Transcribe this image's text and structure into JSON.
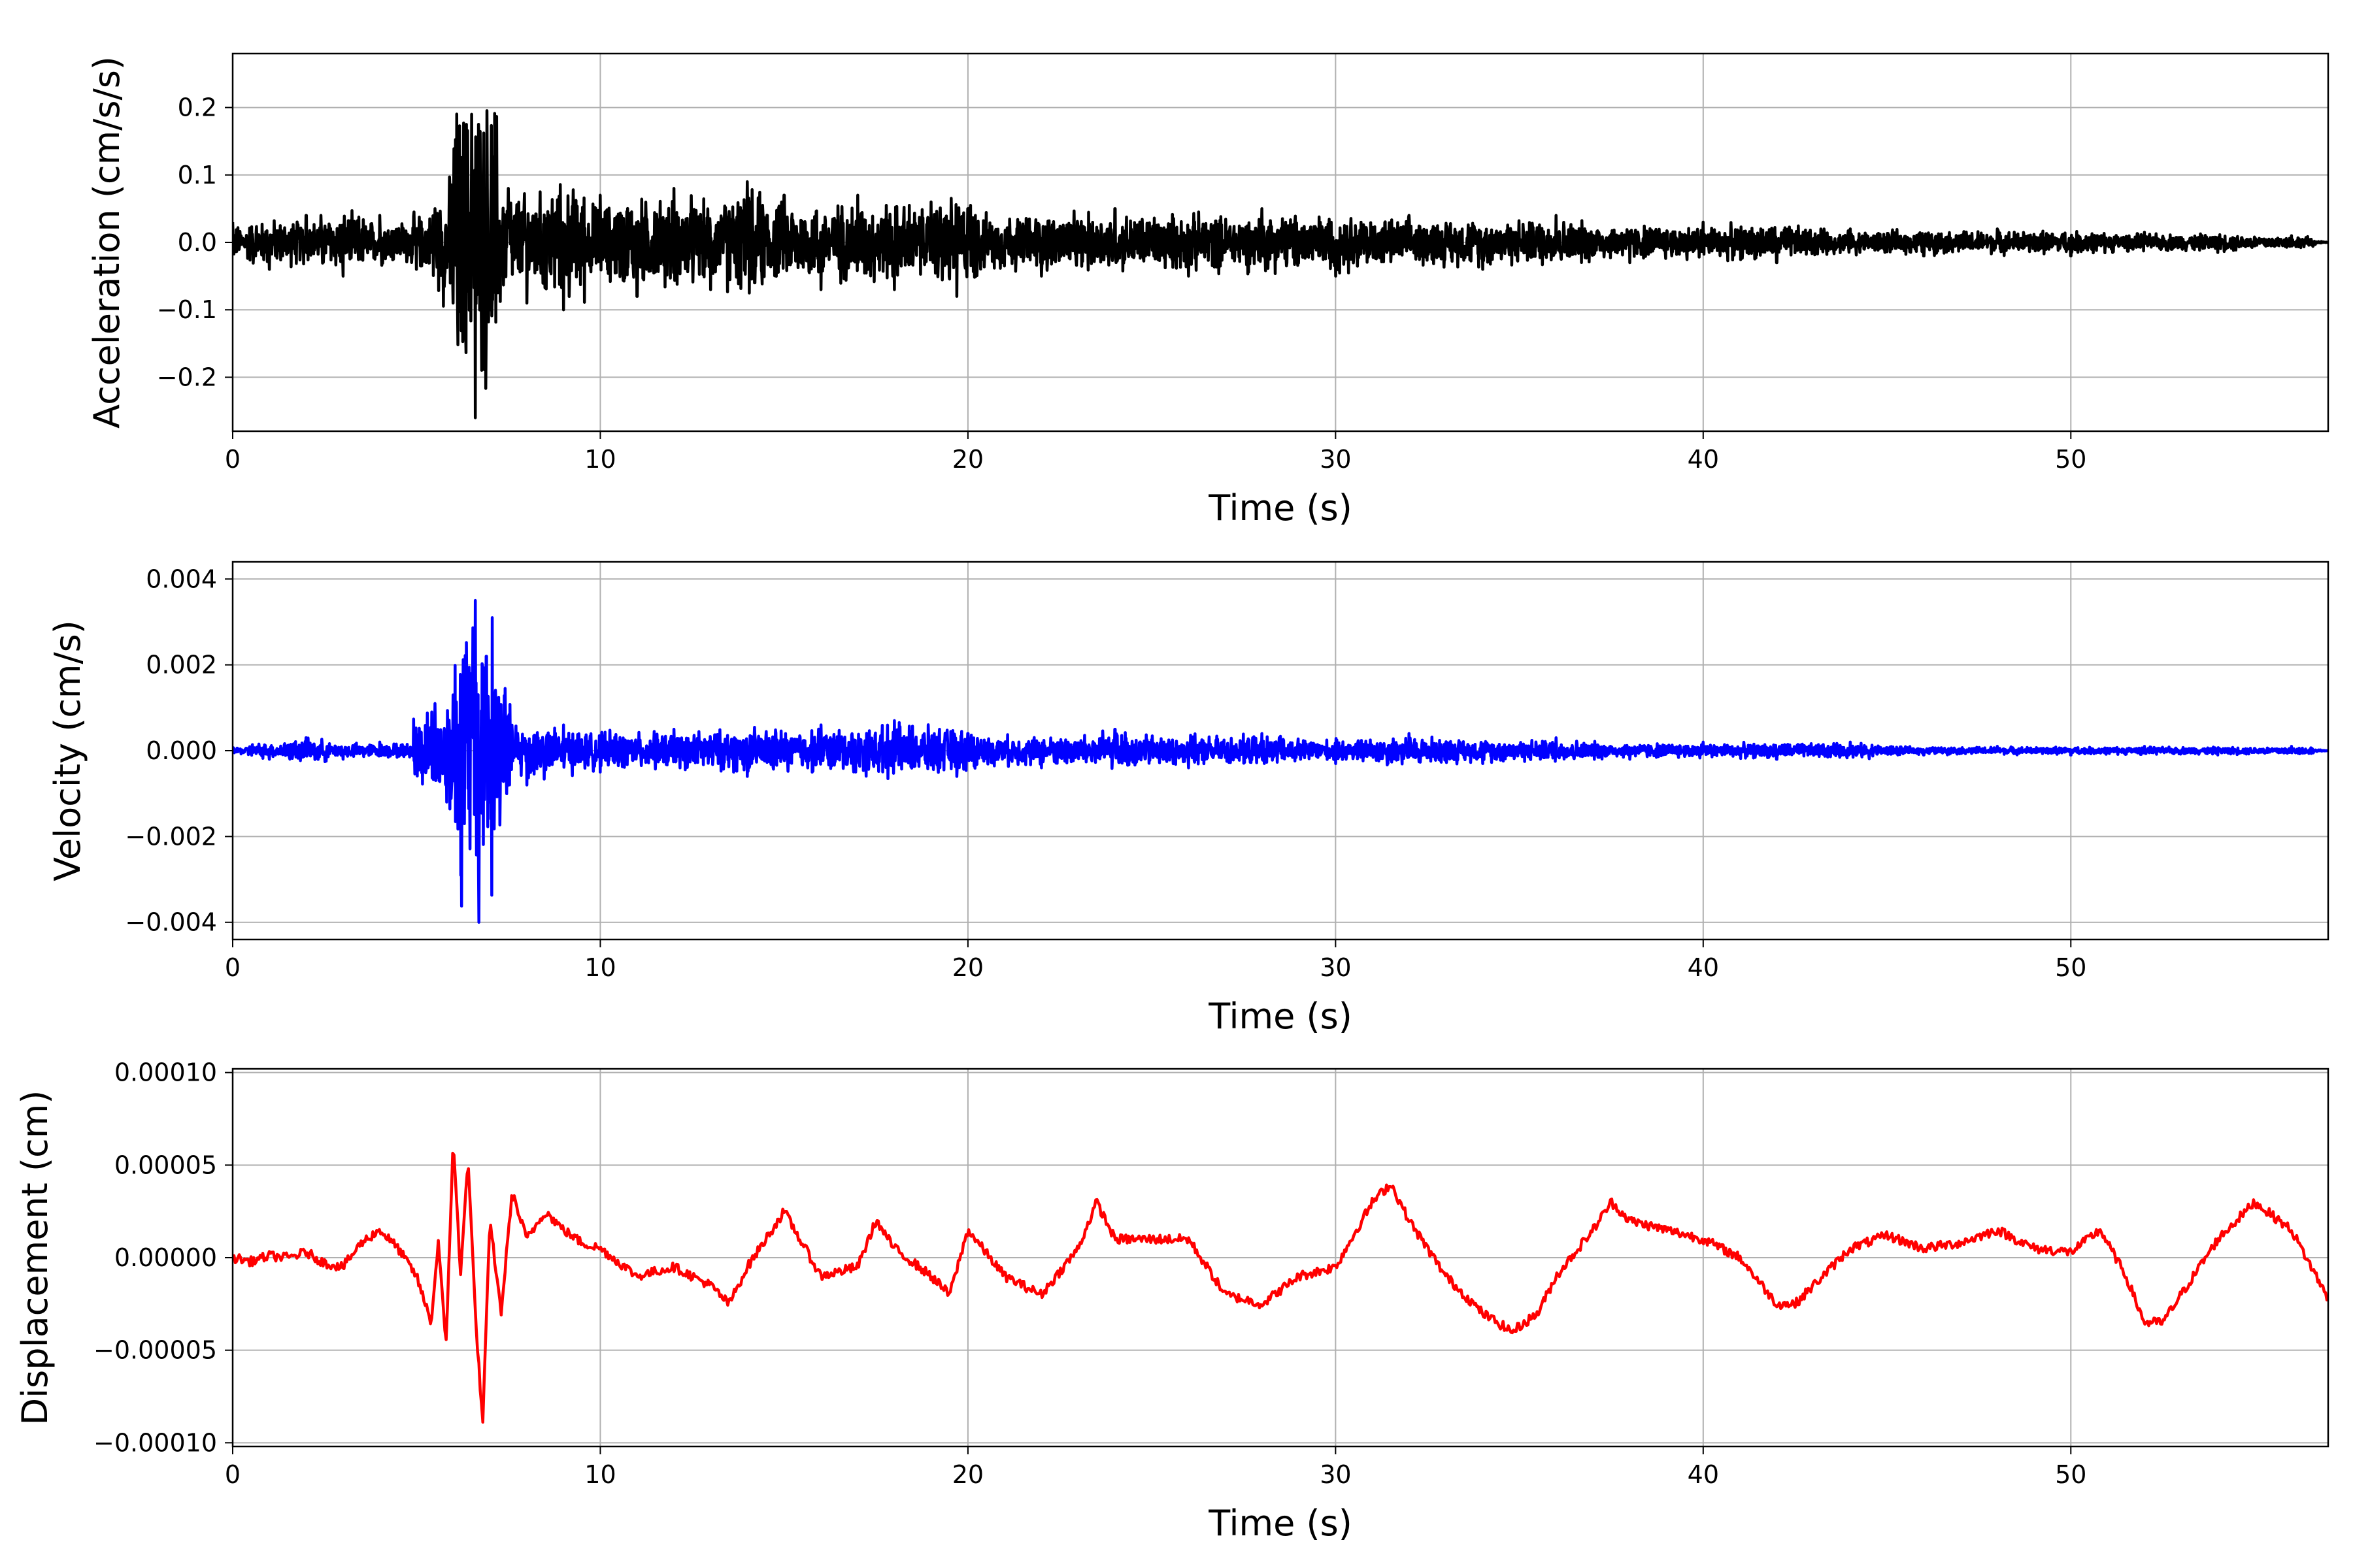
{
  "chart_data": [
    {
      "type": "line",
      "xlabel": "Time (s)",
      "ylabel": "Acceleration (cm/s/s)",
      "xlim": [
        0,
        57
      ],
      "ylim": [
        -0.28,
        0.28
      ],
      "xticks": [
        0,
        10,
        20,
        30,
        40,
        50
      ],
      "xtick_labels": [
        "0",
        "10",
        "20",
        "30",
        "40",
        "50"
      ],
      "yticks": [
        -0.2,
        -0.1,
        0.0,
        0.1,
        0.2
      ],
      "ytick_labels": [
        "−0.2",
        "−0.1",
        "0.0",
        "0.1",
        "0.2"
      ],
      "grid": true,
      "color": "#000000",
      "series": [
        {
          "x": [
            0,
            1,
            2,
            3,
            4,
            5,
            5.5,
            6.0,
            6.3,
            6.5,
            6.6,
            6.7,
            7.0,
            7.5,
            8,
            9,
            10,
            11,
            12,
            13,
            14,
            14.2,
            15,
            16,
            17,
            18,
            19,
            19.7,
            20,
            22,
            24,
            26,
            28,
            30,
            32,
            34,
            36,
            38,
            40,
            42,
            44,
            46,
            48,
            50,
            52,
            54,
            56,
            57
          ],
          "y": [
            0.03,
            -0.04,
            0.04,
            -0.05,
            0.04,
            -0.04,
            0.05,
            -0.09,
            0.11,
            0.19,
            -0.26,
            0.16,
            -0.1,
            0.08,
            -0.09,
            -0.1,
            0.07,
            -0.08,
            0.08,
            -0.07,
            0.09,
            -0.06,
            0.07,
            -0.07,
            0.07,
            -0.07,
            0.06,
            -0.08,
            0.05,
            -0.05,
            0.05,
            -0.05,
            0.05,
            -0.05,
            0.04,
            -0.04,
            0.04,
            -0.03,
            0.03,
            -0.03,
            0.02,
            -0.02,
            0.02,
            -0.02,
            0.015,
            -0.015,
            0.01,
            0.0
          ]
        }
      ]
    },
    {
      "type": "line",
      "xlabel": "Time (s)",
      "ylabel": "Velocity (cm/s)",
      "xlim": [
        0,
        57
      ],
      "ylim": [
        -0.0044,
        0.0044
      ],
      "xticks": [
        0,
        10,
        20,
        30,
        40,
        50
      ],
      "xtick_labels": [
        "0",
        "10",
        "20",
        "30",
        "40",
        "50"
      ],
      "yticks": [
        -0.004,
        -0.002,
        0.0,
        0.002,
        0.004
      ],
      "ytick_labels": [
        "−0.004",
        "−0.002",
        "0.000",
        "0.002",
        "0.004"
      ],
      "grid": true,
      "color": "#0000ff",
      "series": [
        {
          "x": [
            0,
            1,
            2,
            3,
            4,
            5,
            5.5,
            5.8,
            6.0,
            6.3,
            6.5,
            6.6,
            6.7,
            6.9,
            7.0,
            7.5,
            8,
            9,
            10,
            12,
            14,
            16,
            18,
            19.7,
            20,
            22,
            24,
            26,
            28,
            30,
            32,
            34,
            36,
            38,
            40,
            42,
            44,
            46,
            48,
            50,
            52,
            54,
            56,
            57
          ],
          "y": [
            0.0001,
            -0.0002,
            0.0003,
            -0.0002,
            0.0002,
            -0.0002,
            0.0011,
            -0.0008,
            0.0013,
            -0.0017,
            0.0018,
            0.0035,
            -0.004,
            0.0022,
            -0.0012,
            0.0008,
            -0.0008,
            0.0006,
            -0.0005,
            0.0005,
            -0.0006,
            0.0006,
            0.0007,
            -0.0006,
            0.0004,
            -0.0004,
            0.0005,
            -0.0004,
            0.0004,
            -0.0003,
            0.0004,
            -0.0003,
            0.0003,
            -0.0002,
            0.0002,
            -0.0002,
            0.0002,
            -0.0001,
            0.0001,
            -0.0001,
            0.0001,
            -0.0001,
            0.0001,
            0.0
          ]
        }
      ]
    },
    {
      "type": "line",
      "xlabel": "Time (s)",
      "ylabel": "Displacement (cm)",
      "xlim": [
        0,
        57
      ],
      "ylim": [
        -0.000102,
        0.000102
      ],
      "xticks": [
        0,
        10,
        20,
        30,
        40,
        50
      ],
      "xtick_labels": [
        "0",
        "10",
        "20",
        "30",
        "40",
        "50"
      ],
      "yticks": [
        -0.0001,
        -5e-05,
        0.0,
        5e-05,
        0.0001
      ],
      "ytick_labels": [
        "−0.00010",
        "−0.00005",
        "0.00000",
        "0.00005",
        "0.00010"
      ],
      "grid": true,
      "color": "#ff0000",
      "series": [
        {
          "x": [
            0,
            0.5,
            1,
            1.5,
            2,
            2.5,
            3,
            3.5,
            4,
            4.5,
            5,
            5.4,
            5.6,
            5.8,
            6.0,
            6.2,
            6.4,
            6.6,
            6.8,
            7.0,
            7.3,
            7.6,
            8.0,
            8.5,
            9,
            9.5,
            10,
            11,
            12,
            13,
            13.5,
            14,
            15,
            16,
            17,
            17.5,
            18,
            19,
            19.5,
            20,
            21,
            22,
            23,
            23.5,
            24,
            25,
            26,
            27,
            28,
            29,
            30,
            31,
            31.5,
            32,
            33,
            34,
            34.8,
            35.5,
            36,
            37,
            37.5,
            38,
            39,
            40,
            41,
            42,
            42.5,
            43,
            44,
            45,
            46,
            47,
            48,
            49,
            50,
            50.8,
            51.5,
            52,
            52.5,
            53,
            54,
            55,
            56,
            57
          ],
          "y": [
            0.0,
            -2e-06,
            1e-06,
            0.0,
            3e-06,
            -3e-06,
            -5e-06,
            8e-06,
            1.5e-05,
            5e-06,
            -1e-05,
            -3.5e-05,
            1e-05,
            -5e-05,
            6.5e-05,
            -1e-05,
            5.5e-05,
            -3e-05,
            -9e-05,
            2e-05,
            -3e-05,
            3.5e-05,
            1e-05,
            2.5e-05,
            1.5e-05,
            8e-06,
            5e-06,
            -1e-05,
            -5e-06,
            -1.5e-05,
            -2.5e-05,
            -5e-06,
            2.5e-05,
            -1e-05,
            -5e-06,
            2e-05,
            5e-06,
            -1e-05,
            -2e-05,
            1.5e-05,
            -1e-05,
            -2e-05,
            5e-06,
            3e-05,
            1e-05,
            1e-05,
            1e-05,
            -2e-05,
            -2.5e-05,
            -1e-05,
            -5e-06,
            3e-05,
            4e-05,
            2e-05,
            -1e-05,
            -3e-05,
            -4e-05,
            -3e-05,
            -1e-05,
            1.5e-05,
            3e-05,
            2e-05,
            1.5e-05,
            1e-05,
            0.0,
            -2.5e-05,
            -2.5e-05,
            -1.5e-05,
            5e-06,
            1.2e-05,
            5e-06,
            8e-06,
            1.5e-05,
            5e-06,
            3e-06,
            1.5e-05,
            -1e-05,
            -3.5e-05,
            -3.5e-05,
            -2e-05,
            1e-05,
            3e-05,
            1.5e-05,
            -2.2e-05
          ]
        }
      ]
    }
  ]
}
